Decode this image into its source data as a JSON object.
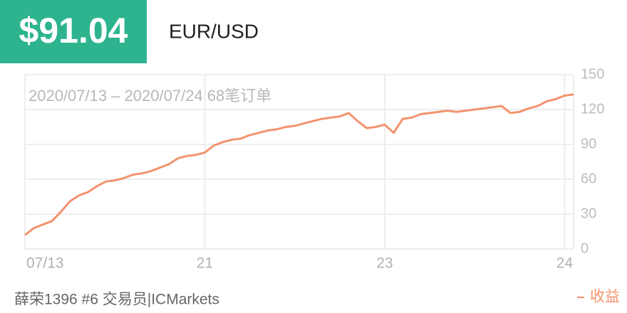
{
  "chart_data": {
    "type": "line",
    "title": "$91.04",
    "subtitle": "EUR/USD",
    "annotation": "2020/07/13 – 2020/07/24 68笔订单",
    "footer": "薛荣1396 #6 交易员|ICMarkets",
    "legend": "bottom-right",
    "grid": true,
    "series": [
      {
        "name": "收益",
        "color": "#f3936e",
        "values": [
          12,
          18,
          21,
          24,
          32,
          41,
          46,
          49,
          54,
          58,
          59,
          61,
          64,
          65,
          67,
          70,
          73,
          78,
          80,
          81,
          83,
          89,
          92,
          94,
          95,
          98,
          100,
          102,
          103,
          105,
          106,
          108,
          110,
          112,
          113,
          114,
          117,
          110,
          104,
          105,
          107,
          100,
          112,
          113,
          116,
          117,
          118,
          119,
          118,
          119,
          120,
          121,
          122,
          123,
          117,
          118,
          121,
          123,
          127,
          129,
          132,
          133
        ]
      }
    ],
    "xlim": [
      0,
      61
    ],
    "xticks": [
      {
        "value": 0,
        "label": "07/13"
      },
      {
        "value": 20,
        "label": "21"
      },
      {
        "value": 40,
        "label": "23"
      },
      {
        "value": 60,
        "label": "24"
      }
    ],
    "ylim": [
      0,
      150
    ],
    "yticks": [
      0,
      30,
      60,
      90,
      120,
      150
    ]
  }
}
